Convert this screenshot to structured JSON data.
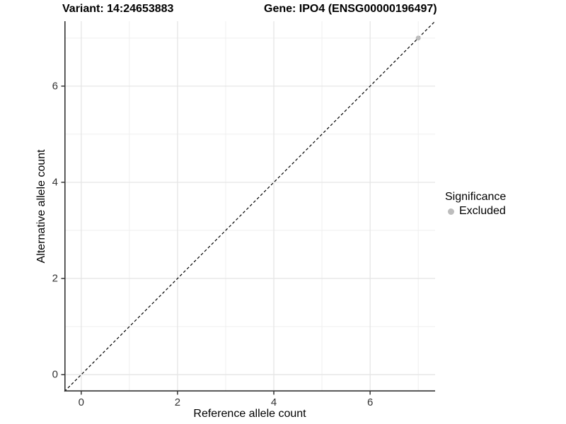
{
  "chart_data": {
    "type": "scatter",
    "titles": {
      "left": "Variant: 14:24653883",
      "right": "Gene: IPO4 (ENSG00000196497)"
    },
    "xlabel": "Reference allele count",
    "ylabel": "Alternative allele count",
    "xlim": [
      -0.35,
      7.35
    ],
    "ylim": [
      -0.35,
      7.35
    ],
    "xticks": [
      0,
      2,
      4,
      6
    ],
    "yticks": [
      0,
      2,
      4,
      6
    ],
    "xminor": [
      1,
      3,
      5,
      7
    ],
    "yminor": [
      1,
      3,
      5,
      7
    ],
    "grid": true,
    "aspect": "equal",
    "series": [
      {
        "name": "Excluded",
        "color": "#bdbdbd",
        "points": [
          {
            "x": 7,
            "y": 7
          }
        ]
      }
    ],
    "reference_line": {
      "type": "identity",
      "slope": 1,
      "intercept": 0,
      "style": "dashed",
      "color": "#000000"
    },
    "legend": {
      "title": "Significance",
      "position": "right",
      "items": [
        {
          "label": "Excluded",
          "color": "#bdbdbd"
        }
      ]
    },
    "colors": {
      "background": "#ffffff",
      "grid_major": "#e5e5e5",
      "grid_minor": "#efefef",
      "axis_line": "#333333",
      "tick_label": "#333333"
    }
  }
}
